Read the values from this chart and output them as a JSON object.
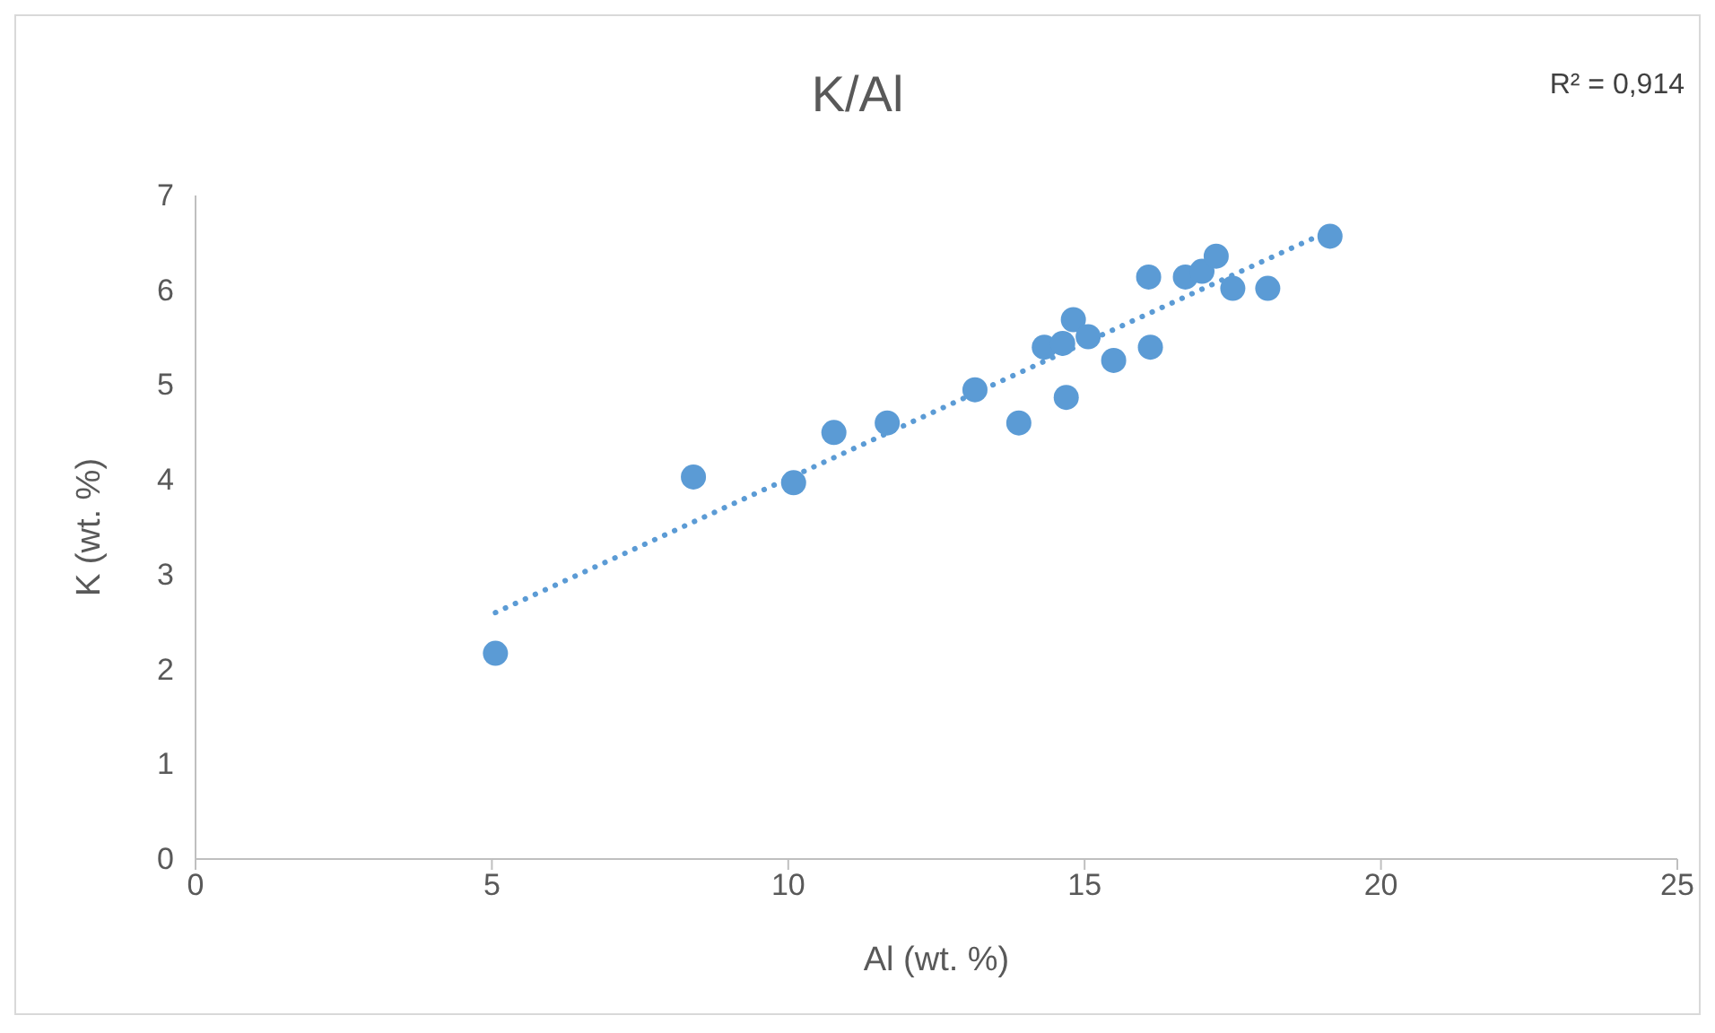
{
  "chart_data": {
    "type": "scatter",
    "title": "K/Al",
    "xlabel": "Al (wt. %)",
    "ylabel": "K (wt. %)",
    "annotations": [
      "R² = 0,914"
    ],
    "xlim": [
      0,
      25
    ],
    "xticks": [
      0,
      5,
      10,
      15,
      20,
      25
    ],
    "ylim": [
      0,
      7
    ],
    "yticks": [
      0,
      1,
      2,
      3,
      4,
      5,
      6,
      7
    ],
    "grid": false,
    "legend": false,
    "marker": "circle",
    "series": [
      {
        "color": "#5b9bd5",
        "x": [
          5.06,
          8.4,
          10.09,
          10.77,
          11.67,
          13.15,
          13.89,
          14.32,
          14.63,
          14.69,
          14.81,
          15.06,
          15.49,
          16.08,
          16.11,
          16.7,
          16.98,
          17.22,
          17.5,
          18.09,
          19.14
        ],
        "values": [
          2.17,
          4.03,
          3.97,
          4.5,
          4.6,
          4.95,
          4.6,
          5.4,
          5.44,
          4.87,
          5.69,
          5.51,
          5.26,
          6.14,
          5.4,
          6.14,
          6.2,
          6.36,
          6.02,
          6.02,
          6.57
        ]
      },
      {
        "type": "line",
        "color": "#5b9bd5",
        "line_style": "dotted",
        "marker": "none",
        "x": [
          5.06,
          19.14
        ],
        "values": [
          2.6,
          6.63
        ]
      }
    ]
  }
}
